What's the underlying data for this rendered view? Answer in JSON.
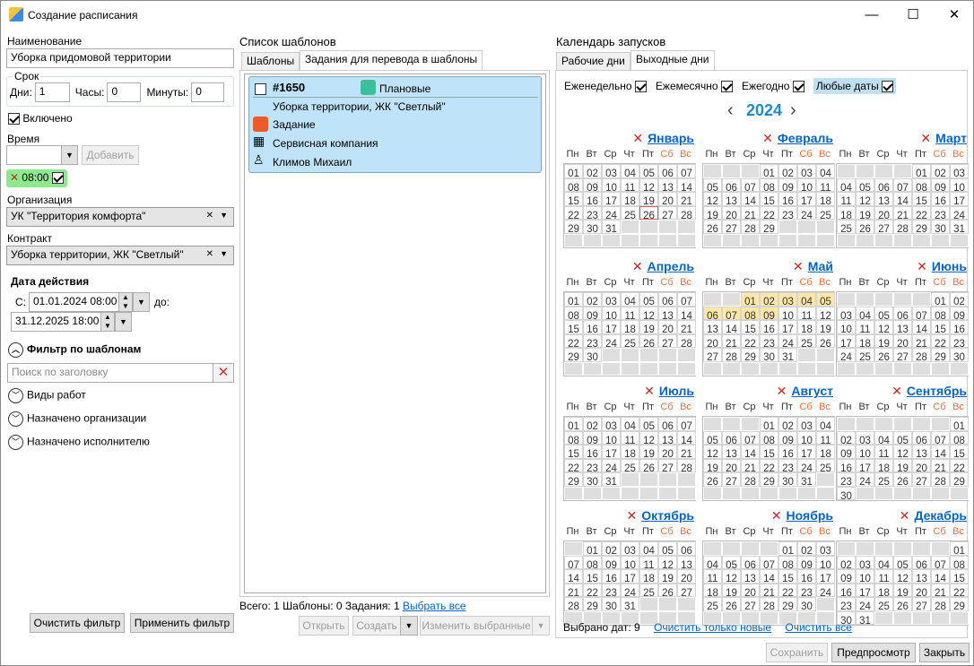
{
  "window": {
    "title": "Создание расписания",
    "min": "—",
    "max": "☐",
    "close": "✕"
  },
  "left": {
    "name_label": "Наименование",
    "name_value": "Уборка придомовой территории",
    "term_label": "Срок",
    "days_label": "Дни:",
    "days_value": "1",
    "hours_label": "Часы:",
    "hours_value": "0",
    "minutes_label": "Минуты:",
    "minutes_value": "0",
    "enabled_label": "Включено",
    "enabled": true,
    "time_label": "Время",
    "time_value": "",
    "add_button": "Добавить",
    "time_chip": "08:00",
    "time_chip_checked": true,
    "org_label": "Организация",
    "org_value": "УК \"Территория комфорта\"",
    "contract_label": "Контракт",
    "contract_value": "Уборка территории, ЖК \"Светлый\"",
    "period_label": "Дата действия",
    "from_label": "С:",
    "from_value": "01.01.2024 08:00",
    "to_label": "до:",
    "to_value": "31.12.2025 18:00",
    "filter_title": "Фильтр по шаблонам",
    "search_placeholder": "Поиск по заголовку",
    "filters": [
      "Виды работ",
      "Назначено организации",
      "Назначено исполнителю"
    ],
    "clear_filter": "Очистить фильтр",
    "apply_filter": "Применить фильтр"
  },
  "templates": {
    "title": "Список шаблонов",
    "tabs": [
      "Шаблоны",
      "Задания для перевода в шаблоны"
    ],
    "active_tab": 1,
    "card": {
      "id": "#1650",
      "category": "Плановые",
      "title": "Уборка территории, ЖК \"Светлый\"",
      "type": "Задание",
      "org": "Сервисная компания",
      "person": "Климов Михаил",
      "checked": false
    },
    "summary": "Всего: 1 Шаблоны: 0 Задания: 1",
    "select_all": "Выбрать все",
    "open": "Открыть",
    "create": "Создать",
    "change_selected": "Изменить выбранные"
  },
  "calendar": {
    "title": "Календарь запусков",
    "tabs": [
      "Рабочие дни",
      "Выходные дни"
    ],
    "active_tab": 1,
    "options": [
      {
        "label": "Еженедельно",
        "checked": true
      },
      {
        "label": "Ежемесячно",
        "checked": true
      },
      {
        "label": "Ежегодно",
        "checked": true
      },
      {
        "label": "Любые даты",
        "checked": true
      }
    ],
    "year": "2024",
    "prev": "‹",
    "next": "›",
    "weekdays": [
      "Пн",
      "Вт",
      "Ср",
      "Чт",
      "Пт",
      "Сб",
      "Вс"
    ],
    "months": [
      "Январь",
      "Февраль",
      "Март",
      "Апрель",
      "Май",
      "Июнь",
      "Июль",
      "Август",
      "Сентябрь",
      "Октябрь",
      "Ноябрь",
      "Декабрь"
    ],
    "selected_dates": [
      "2024-05-01",
      "2024-05-02",
      "2024-05-03",
      "2024-05-04",
      "2024-05-05",
      "2024-05-06",
      "2024-05-07",
      "2024-05-08",
      "2024-05-09"
    ],
    "today": "2024-01-26",
    "selected_count_label": "Выбрано дат: 9",
    "clear_new": "Очистить только новые",
    "clear_all": "Очистить все",
    "colors": {
      "selected": "#ffe7a8",
      "weekend": "#f2713c",
      "link": "#0563c1"
    }
  },
  "footer": {
    "save": "Сохранить",
    "preview": "Предпросмотр",
    "close": "Закрыть"
  }
}
